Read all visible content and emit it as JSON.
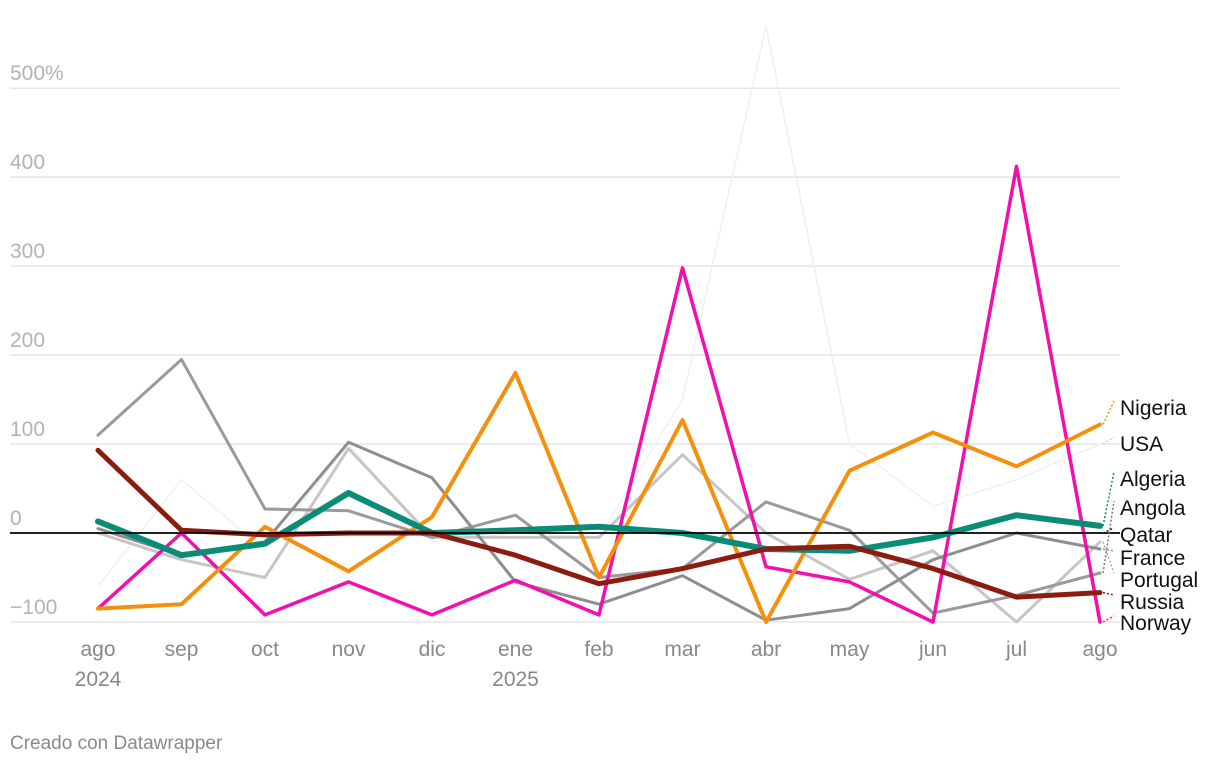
{
  "credit": "Creado con Datawrapper",
  "chart_data": {
    "type": "line",
    "title": "",
    "xlabel": "",
    "ylabel": "",
    "ylim": [
      -100,
      500
    ],
    "y_ticks": [
      -100,
      0,
      100,
      200,
      300,
      400,
      500
    ],
    "y_tick_labels": [
      "−100",
      "0",
      "100",
      "200",
      "300",
      "400",
      "500%"
    ],
    "grid": true,
    "x": [
      "ago",
      "sep",
      "oct",
      "nov",
      "dic",
      "ene",
      "feb",
      "mar",
      "abr",
      "may",
      "jun",
      "jul",
      "ago"
    ],
    "x_year_labels": {
      "0": "2024",
      "5": "2025"
    },
    "legend": "labels at right end of lines",
    "series": [
      {
        "name": "USA",
        "color": "#f0f0f0",
        "width": 1.5,
        "values": [
          -60,
          60,
          -20,
          100,
          -10,
          0,
          -5,
          150,
          570,
          100,
          30,
          60,
          100
        ]
      },
      {
        "name": "Portugal",
        "color": "#c6c6c6",
        "width": 3,
        "values": [
          0,
          -30,
          -50,
          95,
          -5,
          -5,
          -5,
          88,
          0,
          -52,
          -20,
          -100,
          -10
        ]
      },
      {
        "name": "Angola",
        "color": "#9a9a9a",
        "width": 3,
        "values": [
          110,
          195,
          27,
          25,
          -5,
          20,
          -50,
          -40,
          35,
          3,
          -90,
          -70,
          -45
        ]
      },
      {
        "name": "France",
        "color": "#8e8e8e",
        "width": 3,
        "values": [
          5,
          -25,
          -10,
          102,
          62,
          -55,
          -80,
          -48,
          -98,
          -85,
          -30,
          0,
          -18
        ]
      },
      {
        "name": "Norway",
        "color": "#f20fae",
        "width": 3.5,
        "values": [
          -85,
          0,
          -92,
          -55,
          -92,
          -53,
          -92,
          298,
          -38,
          -55,
          -100,
          412,
          -100
        ]
      },
      {
        "name": "Nigeria",
        "color": "#f5900d",
        "width": 4,
        "values": [
          -85,
          -80,
          7,
          -43,
          18,
          180,
          -50,
          127,
          -100,
          70,
          113,
          75,
          122
        ]
      },
      {
        "name": "Algeria",
        "color": "#0b8c76",
        "width": 6,
        "values": [
          13,
          -25,
          -12,
          45,
          0,
          3,
          7,
          0,
          -18,
          -20,
          -5,
          20,
          8
        ]
      },
      {
        "name": "Russia",
        "color": "#8c1c10",
        "width": 5,
        "values": [
          93,
          3,
          -2,
          0,
          0,
          -25,
          -57,
          -40,
          -18,
          -15,
          -40,
          -72,
          -67
        ]
      },
      {
        "name": "Qatar",
        "color": "#222222",
        "width": 0,
        "values": [
          0,
          0,
          0,
          0,
          0,
          0,
          0,
          0,
          0,
          0,
          0,
          0,
          0
        ]
      }
    ],
    "legend_order": [
      "Nigeria",
      "USA",
      "Algeria",
      "Angola",
      "Qatar",
      "France",
      "Portugal",
      "Russia",
      "Norway"
    ],
    "legend_colors": {
      "Nigeria": "#f5900d",
      "USA": "#cccccc",
      "Algeria": "#0b8c76",
      "Angola": "#777777",
      "Qatar": "#222222",
      "France": "#8e8e8e",
      "Portugal": "#aaaaaa",
      "Russia": "#8c1c10",
      "Norway": "#f20fae"
    }
  }
}
